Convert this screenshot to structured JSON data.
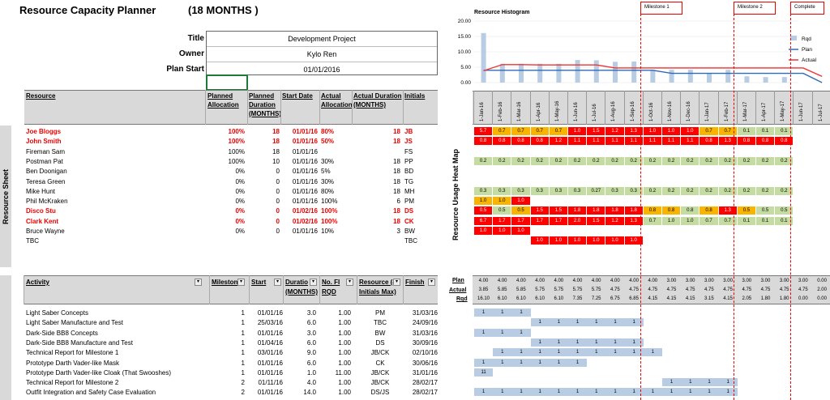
{
  "header": {
    "title": "Resource Capacity Planner",
    "duration": "(18 MONTHS )"
  },
  "project": {
    "title_label": "Title",
    "owner_label": "Owner",
    "start_label": "Plan Start",
    "title": "Development Project",
    "owner": "Kylo Ren",
    "start": "01/01/2016"
  },
  "side_labels": {
    "resource_sheet": "Resource Sheet",
    "heat_map": "Resource Usage Heat Map"
  },
  "resource_table": {
    "headers": [
      "Resource",
      "Planned Allocation",
      "Planned Duration (MONTHS)",
      "Start Date",
      "Actual Allocation",
      "Actual Duration (MONTHS)",
      "Initials"
    ],
    "rows": [
      {
        "name": "Joe Bloggs",
        "pa": "100%",
        "pd": "18",
        "sd": "01/01/16",
        "aa": "80%",
        "ad": "18",
        "ini": "JB",
        "red": true
      },
      {
        "name": "John Smith",
        "pa": "100%",
        "pd": "18",
        "sd": "01/01/16",
        "aa": "50%",
        "ad": "18",
        "ini": "JS",
        "red": true
      },
      {
        "name": "Fireman Sam",
        "pa": "100%",
        "pd": "18",
        "sd": "01/01/16",
        "aa": "",
        "ad": "",
        "ini": "FS",
        "red": false
      },
      {
        "name": "Postman Pat",
        "pa": "100%",
        "pd": "10",
        "sd": "01/01/16",
        "aa": "30%",
        "ad": "18",
        "ini": "PP",
        "red": false
      },
      {
        "name": "Ben Doonigan",
        "pa": "0%",
        "pd": "0",
        "sd": "01/01/16",
        "aa": "5%",
        "ad": "18",
        "ini": "BD",
        "red": false
      },
      {
        "name": "Teresa Green",
        "pa": "0%",
        "pd": "0",
        "sd": "01/01/16",
        "aa": "30%",
        "ad": "18",
        "ini": "TG",
        "red": false
      },
      {
        "name": "Mike Hunt",
        "pa": "0%",
        "pd": "0",
        "sd": "01/01/16",
        "aa": "80%",
        "ad": "18",
        "ini": "MH",
        "red": false
      },
      {
        "name": "Phil McKraken",
        "pa": "0%",
        "pd": "0",
        "sd": "01/01/16",
        "aa": "100%",
        "ad": "6",
        "ini": "PM",
        "red": false
      },
      {
        "name": "Disco Stu",
        "pa": "0%",
        "pd": "0",
        "sd": "01/02/16",
        "aa": "100%",
        "ad": "18",
        "ini": "DS",
        "red": true
      },
      {
        "name": "Clark Kent",
        "pa": "0%",
        "pd": "0",
        "sd": "01/02/16",
        "aa": "100%",
        "ad": "18",
        "ini": "CK",
        "red": true
      },
      {
        "name": "Bruce Wayne",
        "pa": "0%",
        "pd": "0",
        "sd": "01/01/16",
        "aa": "10%",
        "ad": "3",
        "ini": "BW",
        "red": false
      },
      {
        "name": "TBC",
        "pa": "",
        "pd": "",
        "sd": "",
        "aa": "",
        "ad": "",
        "ini": "TBC",
        "red": false
      }
    ]
  },
  "activity_table": {
    "headers": [
      "Activity",
      "Milestone",
      "Start",
      "Duration (MONTHS)",
      "No. FTE RQD",
      "Resource (4 Initials Max)",
      "Finish"
    ],
    "header_display": [
      "Activity",
      "Mileston",
      "Start",
      "Duratio",
      "No. FI",
      "Resource (4",
      "Finish"
    ],
    "header_sub": [
      "",
      "",
      "",
      "(MONTHS)",
      "RQD",
      "Initials Max)",
      ""
    ],
    "rows": [
      {
        "name": "Light Saber Concepts",
        "ms": "1",
        "start": "01/01/16",
        "dur": "3.0",
        "fte": "1.00",
        "res": "PM",
        "fin": "31/03/16"
      },
      {
        "name": "Light Saber Manufacture and Test",
        "ms": "1",
        "start": "25/03/16",
        "dur": "6.0",
        "fte": "1.00",
        "res": "TBC",
        "fin": "24/09/16"
      },
      {
        "name": "Dark-Side BB8 Concepts",
        "ms": "1",
        "start": "01/01/16",
        "dur": "3.0",
        "fte": "1.00",
        "res": "BW",
        "fin": "31/03/16"
      },
      {
        "name": "Dark-Side BB8 Manufacture and Test",
        "ms": "1",
        "start": "01/04/16",
        "dur": "6.0",
        "fte": "1.00",
        "res": "DS",
        "fin": "30/09/16"
      },
      {
        "name": "Technical Report for Milestone 1",
        "ms": "1",
        "start": "03/01/16",
        "dur": "9.0",
        "fte": "1.00",
        "res": "JB/CK",
        "fin": "02/10/16"
      },
      {
        "name": "Prototype Darth Vader-like Mask",
        "ms": "1",
        "start": "01/01/16",
        "dur": "6.0",
        "fte": "1.00",
        "res": "CK",
        "fin": "30/06/16"
      },
      {
        "name": "Prototype Darth Vader-like Cloak (That Swooshes)",
        "ms": "1",
        "start": "01/01/16",
        "dur": "1.0",
        "fte": "11.00",
        "res": "JB/CK",
        "fin": "31/01/16"
      },
      {
        "name": "Technical Report for Milestone 2",
        "ms": "2",
        "start": "01/11/16",
        "dur": "4.0",
        "fte": "1.00",
        "res": "JB/CK",
        "fin": "28/02/17"
      },
      {
        "name": "Outfit Integration and Safety Case Evaluation",
        "ms": "2",
        "start": "01/01/16",
        "dur": "14.0",
        "fte": "1.00",
        "res": "DS/JS",
        "fin": "28/02/17"
      }
    ]
  },
  "histogram": {
    "title": "Resource Histogram",
    "legend": [
      "Rqd",
      "Plan",
      "Actual"
    ],
    "y_ticks": [
      "20.00",
      "15.00",
      "10.00",
      "5.00",
      "0.00"
    ]
  },
  "milestones": [
    "Milestone 1",
    "Milestone 2",
    "Complete"
  ],
  "months": [
    "1-Jan-16",
    "1-Feb-16",
    "1-Mar-16",
    "1-Apr-16",
    "1-May-16",
    "1-Jun-16",
    "1-Jul-16",
    "1-Aug-16",
    "1-Sep-16",
    "1-Oct-16",
    "1-Nov-16",
    "1-Dec-16",
    "1-Jan-17",
    "1-Feb-17",
    "1-Mar-17",
    "1-Apr-17",
    "1-May-17",
    "1-Jun-17",
    "1-Jul-17"
  ],
  "chart_data": {
    "type": "bar",
    "title": "Resource Histogram",
    "categories": [
      "1-Jan-16",
      "1-Feb-16",
      "1-Mar-16",
      "1-Apr-16",
      "1-May-16",
      "1-Jun-16",
      "1-Jul-16",
      "1-Aug-16",
      "1-Sep-16",
      "1-Oct-16",
      "1-Nov-16",
      "1-Dec-16",
      "1-Jan-17",
      "1-Feb-17",
      "1-Mar-17",
      "1-Apr-17",
      "1-May-17",
      "1-Jun-17",
      "1-Jul-17"
    ],
    "ylim": [
      0,
      20
    ],
    "series": [
      {
        "name": "Rqd",
        "kind": "bar",
        "values": [
          16.1,
          6.1,
          6.1,
          6.1,
          6.1,
          7.35,
          7.25,
          6.75,
          6.85,
          4.15,
          4.15,
          4.15,
          3.15,
          4.15,
          2.05,
          1.8,
          1.8,
          0.0,
          0.0
        ]
      },
      {
        "name": "Plan",
        "kind": "line",
        "values": [
          4.0,
          4.0,
          4.0,
          4.0,
          4.0,
          4.0,
          4.0,
          4.0,
          4.0,
          4.0,
          3.0,
          3.0,
          3.0,
          3.0,
          3.0,
          3.0,
          3.0,
          3.0,
          0.0
        ]
      },
      {
        "name": "Actual",
        "kind": "line",
        "values": [
          3.85,
          5.85,
          5.85,
          5.75,
          5.75,
          5.75,
          5.75,
          4.75,
          4.75,
          4.75,
          4.75,
          4.75,
          4.75,
          4.75,
          4.75,
          4.75,
          4.75,
          4.75,
          2.0
        ]
      }
    ]
  },
  "totals": {
    "labels": [
      "Plan",
      "Actual",
      "Rqd"
    ],
    "plan": [
      "4.00",
      "4.00",
      "4.00",
      "4.00",
      "4.00",
      "4.00",
      "4.00",
      "4.00",
      "4.00",
      "4.00",
      "3.00",
      "3.00",
      "3.00",
      "3.00",
      "3.00",
      "3.00",
      "3.00",
      "3.00",
      "0.00"
    ],
    "actual": [
      "3.85",
      "5.85",
      "5.85",
      "5.75",
      "5.75",
      "5.75",
      "5.75",
      "4.75",
      "4.75",
      "4.75",
      "4.75",
      "4.75",
      "4.75",
      "4.75",
      "4.75",
      "4.75",
      "4.75",
      "4.75",
      "2.00"
    ],
    "rqd": [
      "16.10",
      "6.10",
      "6.10",
      "6.10",
      "6.10",
      "7.35",
      "7.25",
      "6.75",
      "6.85",
      "4.15",
      "4.15",
      "4.15",
      "3.15",
      "4.15",
      "2.05",
      "1.80",
      "1.80",
      "0.00",
      "0.00"
    ]
  },
  "heatmap": [
    [
      [
        "5.7",
        "r"
      ],
      [
        "0.7",
        "o"
      ],
      [
        "0.7",
        "o"
      ],
      [
        "0.7",
        "o"
      ],
      [
        "0.7",
        "o"
      ],
      [
        "1.0",
        "r"
      ],
      [
        "1.5",
        "r"
      ],
      [
        "1.2",
        "r"
      ],
      [
        "1.3",
        "r"
      ],
      [
        "1.0",
        "r"
      ],
      [
        "1.0",
        "r"
      ],
      [
        "1.0",
        "r"
      ],
      [
        "0.7",
        "o"
      ],
      [
        "0.7",
        "o"
      ],
      [
        "0.1",
        "g"
      ],
      [
        "0.1",
        "g"
      ],
      [
        "0.1",
        "g"
      ]
    ],
    [
      [
        "0.8",
        "r"
      ],
      [
        "0.8",
        "r"
      ],
      [
        "0.8",
        "r"
      ],
      [
        "0.8",
        "r"
      ],
      [
        "1.2",
        "r"
      ],
      [
        "1.1",
        "r"
      ],
      [
        "1.1",
        "r"
      ],
      [
        "1.1",
        "r"
      ],
      [
        "1.1",
        "r"
      ],
      [
        "1.1",
        "r"
      ],
      [
        "1.1",
        "r"
      ],
      [
        "1.1",
        "r"
      ],
      [
        "0.8",
        "r"
      ],
      [
        "1.3",
        "r"
      ],
      [
        "0.8",
        "r"
      ],
      [
        "0.8",
        "r"
      ],
      [
        "0.8",
        "r"
      ]
    ],
    [],
    [
      [
        "0.2",
        "g"
      ],
      [
        "0.2",
        "g"
      ],
      [
        "0.2",
        "g"
      ],
      [
        "0.2",
        "g"
      ],
      [
        "0.2",
        "g"
      ],
      [
        "0.2",
        "g"
      ],
      [
        "0.2",
        "g"
      ],
      [
        "0.2",
        "g"
      ],
      [
        "0.2",
        "g"
      ],
      [
        "0.2",
        "g"
      ],
      [
        "0.2",
        "g"
      ],
      [
        "0.2",
        "g"
      ],
      [
        "0.2",
        "g"
      ],
      [
        "0.2",
        "g"
      ],
      [
        "0.2",
        "g"
      ],
      [
        "0.2",
        "g"
      ],
      [
        "0.2",
        "g"
      ]
    ],
    [],
    [],
    [
      [
        "0.3",
        "g"
      ],
      [
        "0.3",
        "g"
      ],
      [
        "0.3",
        "g"
      ],
      [
        "0.3",
        "g"
      ],
      [
        "0.3",
        "g"
      ],
      [
        "0.3",
        "g"
      ],
      [
        "0.27",
        "g"
      ],
      [
        "0.3",
        "g"
      ],
      [
        "0.3",
        "g"
      ],
      [
        "0.2",
        "g"
      ],
      [
        "0.2",
        "g"
      ],
      [
        "0.2",
        "g"
      ],
      [
        "0.2",
        "g"
      ],
      [
        "0.2",
        "g"
      ],
      [
        "0.2",
        "g"
      ],
      [
        "0.2",
        "g"
      ],
      [
        "0.2",
        "g"
      ]
    ],
    [
      [
        "1.0",
        "o"
      ],
      [
        "1.0",
        "o"
      ],
      [
        "1.0",
        "r"
      ]
    ],
    [
      [
        "0.5",
        "r"
      ],
      [
        "0.5",
        "g"
      ],
      [
        "0.5",
        "o"
      ],
      [
        "1.5",
        "r"
      ],
      [
        "1.5",
        "r"
      ],
      [
        "1.8",
        "r"
      ],
      [
        "1.8",
        "r"
      ],
      [
        "1.8",
        "r"
      ],
      [
        "1.8",
        "r"
      ],
      [
        "0.8",
        "o"
      ],
      [
        "0.8",
        "o"
      ],
      [
        "0.8",
        "g"
      ],
      [
        "0.8",
        "o"
      ],
      [
        "1.3",
        "r"
      ],
      [
        "0.5",
        "o"
      ],
      [
        "0.5",
        "g"
      ],
      [
        "0.5",
        "g"
      ]
    ],
    [
      [
        "6.7",
        "r"
      ],
      [
        "1.7",
        "r"
      ],
      [
        "1.7",
        "r"
      ],
      [
        "1.7",
        "r"
      ],
      [
        "1.7",
        "r"
      ],
      [
        "2.0",
        "r"
      ],
      [
        "1.5",
        "r"
      ],
      [
        "1.2",
        "r"
      ],
      [
        "1.3",
        "r"
      ],
      [
        "0.7",
        "g"
      ],
      [
        "1.0",
        "g"
      ],
      [
        "1.0",
        "g"
      ],
      [
        "0.7",
        "g"
      ],
      [
        "0.7",
        "g"
      ],
      [
        "0.1",
        "g"
      ],
      [
        "0.1",
        "g"
      ],
      [
        "0.1",
        "g"
      ]
    ],
    [
      [
        "1.0",
        "r"
      ],
      [
        "1.0",
        "r"
      ],
      [
        "1.0",
        "r"
      ]
    ],
    [
      null,
      null,
      null,
      [
        "1.0",
        "r"
      ],
      [
        "1.0",
        "r"
      ],
      [
        "1.0",
        "r"
      ],
      [
        "1.0",
        "r"
      ],
      [
        "1.0",
        "r"
      ],
      [
        "1.0",
        "r"
      ]
    ]
  ],
  "gantt": [
    {
      "start": 0,
      "vals": [
        "1",
        "1",
        "1"
      ]
    },
    {
      "start": 3,
      "vals": [
        "1",
        "1",
        "1",
        "1",
        "1",
        "1"
      ]
    },
    {
      "start": 0,
      "vals": [
        "1",
        "1",
        "1"
      ]
    },
    {
      "start": 3,
      "vals": [
        "1",
        "1",
        "1",
        "1",
        "1",
        "1"
      ]
    },
    {
      "start": 1,
      "vals": [
        "1",
        "1",
        "1",
        "1",
        "1",
        "1",
        "1",
        "1",
        "1"
      ]
    },
    {
      "start": 0,
      "vals": [
        "1",
        "1",
        "1",
        "1",
        "1",
        "1"
      ]
    },
    {
      "start": 0,
      "vals": [
        "11"
      ]
    },
    {
      "start": 10,
      "vals": [
        "1",
        "1",
        "1",
        "1"
      ]
    },
    {
      "start": 0,
      "vals": [
        "1",
        "1",
        "1",
        "1",
        "1",
        "1",
        "1",
        "1",
        "1",
        "1",
        "1",
        "1",
        "1",
        "1"
      ]
    }
  ]
}
